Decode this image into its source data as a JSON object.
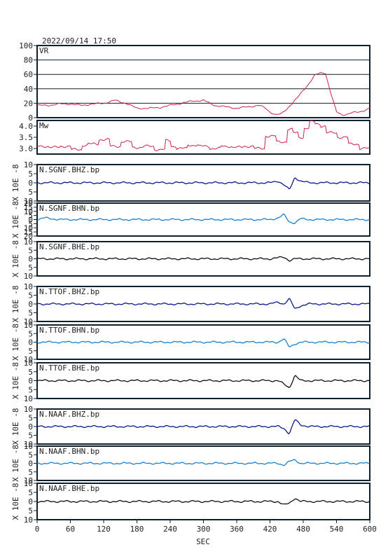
{
  "timestamp": "2022/09/14  17:50",
  "chart_data": {
    "type": "line",
    "xlabel": "SEC",
    "xlim": [
      0,
      600
    ],
    "xticks": [
      0,
      60,
      120,
      180,
      240,
      300,
      360,
      420,
      480,
      540,
      600
    ],
    "colors": {
      "frame": "#0d2030",
      "vr": "#d0204a",
      "dark_blue": "#0a1a8a",
      "light_blue": "#1a80d0",
      "black": "#101010"
    },
    "panels": [
      {
        "label": "VR",
        "ylim": [
          0,
          100
        ],
        "yticks": [
          0,
          20,
          40,
          60,
          80,
          100
        ],
        "grid": true,
        "color": "#d0204a",
        "x": [
          0,
          20,
          40,
          60,
          80,
          100,
          120,
          140,
          160,
          180,
          200,
          220,
          240,
          260,
          280,
          300,
          320,
          340,
          360,
          380,
          400,
          410,
          420,
          430,
          440,
          450,
          460,
          470,
          480,
          490,
          500,
          510,
          520,
          530,
          540,
          550,
          560,
          570,
          580,
          590,
          600
        ],
        "y": [
          17,
          17,
          19,
          19,
          17,
          19,
          20,
          24,
          20,
          13,
          13,
          14,
          17,
          20,
          23,
          24,
          17,
          15,
          13,
          15,
          17,
          14,
          8,
          4,
          5,
          12,
          20,
          28,
          38,
          47,
          58,
          62,
          62,
          33,
          8,
          4,
          5,
          7,
          8,
          10,
          13
        ]
      },
      {
        "label": "Mw",
        "ylim": [
          2.75,
          4.25
        ],
        "yticks": [
          3.0,
          3.5,
          4.0
        ],
        "grid": false,
        "color": "#d0204a",
        "mode": "step",
        "x": [
          0,
          20,
          40,
          60,
          80,
          90,
          110,
          130,
          150,
          170,
          190,
          210,
          230,
          240,
          250,
          270,
          290,
          310,
          330,
          350,
          370,
          390,
          410,
          430,
          450,
          460,
          470,
          480,
          490,
          500,
          510,
          520,
          540,
          560,
          580,
          600
        ],
        "y": [
          3.1,
          3.05,
          3.1,
          2.95,
          3.15,
          3.2,
          3.4,
          3.1,
          3.3,
          3.05,
          3.1,
          2.95,
          3.35,
          3.1,
          3.0,
          3.15,
          3.1,
          3.0,
          3.1,
          3.05,
          3.1,
          3.0,
          3.55,
          3.3,
          3.85,
          3.7,
          3.5,
          3.9,
          4.2,
          4.1,
          4.0,
          3.7,
          3.5,
          3.2,
          3.0,
          3.2
        ]
      },
      {
        "label": "N.SGNF.BHZ.bp",
        "ylabel": "X 10E -8",
        "ylim": [
          -10,
          10
        ],
        "yticks": [
          -10,
          -5,
          0,
          5,
          10
        ],
        "color": "#0a1a8a",
        "x": [
          0,
          420,
          435,
          445,
          455,
          465,
          475,
          490,
          600
        ],
        "y": [
          0,
          0,
          1,
          -1,
          -4,
          3,
          1,
          0,
          0
        ]
      },
      {
        "label": "N.SGNF.BHN.bp",
        "ylabel": "X 10E -8",
        "ylim": [
          -20,
          20
        ],
        "yticks": [
          -20,
          -15,
          -10,
          -5,
          0,
          5,
          10,
          15,
          20
        ],
        "color": "#1a80d0",
        "x": [
          0,
          15,
          40,
          60,
          420,
          435,
          445,
          455,
          465,
          475,
          490,
          600
        ],
        "y": [
          0,
          2,
          0,
          0,
          0,
          2,
          6,
          -3,
          -4,
          1,
          0,
          0
        ]
      },
      {
        "label": "N.SGNF.BHE.bp",
        "ylabel": "X 10E -8",
        "ylim": [
          -10,
          10
        ],
        "yticks": [
          -10,
          -5,
          0,
          5,
          10
        ],
        "color": "#101010",
        "x": [
          0,
          420,
          445,
          455,
          465,
          475,
          600
        ],
        "y": [
          0,
          0,
          1,
          -1,
          0,
          0,
          0
        ]
      },
      {
        "label": "N.TTOF.BHZ.bp",
        "ylabel": "X 10E -8",
        "ylim": [
          -10,
          10
        ],
        "yticks": [
          -10,
          -5,
          0,
          5,
          10
        ],
        "color": "#0a1a8a",
        "x": [
          0,
          420,
          435,
          445,
          455,
          465,
          475,
          490,
          600
        ],
        "y": [
          0,
          0,
          1,
          0,
          3,
          -3,
          -1,
          0,
          0
        ]
      },
      {
        "label": "N.TTOF.BHN.bp",
        "ylabel": "X 10E -8",
        "ylim": [
          -10,
          10
        ],
        "yticks": [
          -10,
          -5,
          0,
          5,
          10
        ],
        "color": "#1a80d0",
        "x": [
          0,
          420,
          435,
          445,
          455,
          465,
          475,
          490,
          600
        ],
        "y": [
          0,
          0,
          0,
          2,
          -3,
          -1,
          0,
          0,
          0
        ]
      },
      {
        "label": "N.TTOF.BHE.bp",
        "ylabel": "X 10E -8",
        "ylim": [
          -10,
          10
        ],
        "yticks": [
          -10,
          -5,
          0,
          5,
          10
        ],
        "color": "#101010",
        "x": [
          0,
          420,
          435,
          445,
          455,
          465,
          475,
          490,
          600
        ],
        "y": [
          0,
          0,
          0,
          -2,
          -4,
          3,
          0,
          0,
          0
        ]
      },
      {
        "label": "N.NAAF.BHZ.bp",
        "ylabel": "X 10E -8",
        "ylim": [
          -10,
          10
        ],
        "yticks": [
          -10,
          -5,
          0,
          5,
          10
        ],
        "color": "#0a1a8a",
        "x": [
          0,
          420,
          435,
          445,
          455,
          465,
          475,
          490,
          600
        ],
        "y": [
          0,
          0,
          0,
          -1,
          -4,
          4,
          1,
          0,
          0
        ]
      },
      {
        "label": "N.NAAF.BHN.bp",
        "ylabel": "X 10E -8",
        "ylim": [
          -10,
          10
        ],
        "yticks": [
          -10,
          -5,
          0,
          5,
          10
        ],
        "color": "#1a80d0",
        "x": [
          0,
          420,
          435,
          445,
          455,
          465,
          475,
          490,
          600
        ],
        "y": [
          0,
          0,
          0,
          -1,
          1,
          2,
          0,
          0,
          0
        ]
      },
      {
        "label": "N.NAAF.BHE.bp",
        "ylabel": "X 10E -8",
        "ylim": [
          -10,
          10
        ],
        "yticks": [
          -10,
          -5,
          0,
          5,
          10
        ],
        "color": "#101010",
        "x": [
          0,
          420,
          435,
          445,
          455,
          465,
          475,
          490,
          600
        ],
        "y": [
          0,
          0,
          0,
          -2,
          -1,
          2,
          0,
          0,
          0
        ]
      }
    ]
  }
}
